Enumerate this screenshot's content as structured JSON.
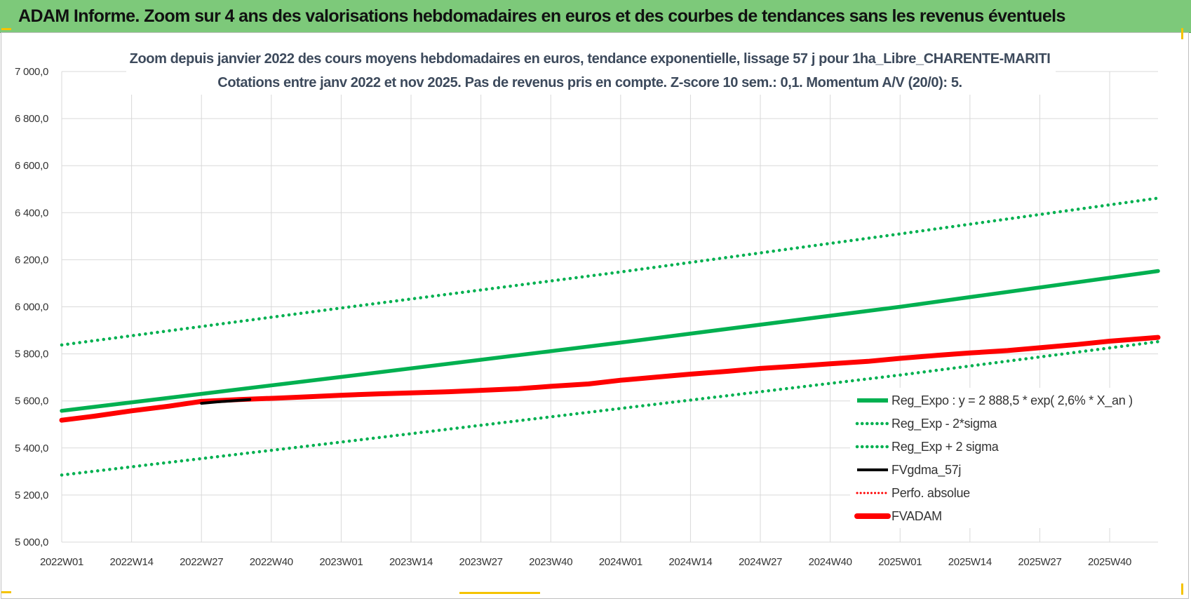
{
  "banner": {
    "title": "ADAM Informe. Zoom sur 4 ans des valorisations hebdomadaires en euros et des courbes de tendances sans les revenus éventuels"
  },
  "chart_data": {
    "type": "line",
    "title": "Zoom depuis janvier 2022 des cours moyens hebdomadaires en euros, tendance exponentielle, lissage 57 j pour 1ha_Libre_CHARENTE-MARITI",
    "subtitle": "Cotations entre janv 2022 et nov 2025. Pas de revenus pris en compte. Z-score 10 sem.: 0,1. Momentum A/V (20/0): 5.",
    "ylim": [
      5000,
      7000
    ],
    "y_ticks": [
      "7 000,0",
      "6 800,0",
      "6 600,0",
      "6 400,0",
      "6 200,0",
      "6 000,0",
      "5 800,0",
      "5 600,0",
      "5 400,0",
      "5 200,0",
      "5 000,0"
    ],
    "y_tick_values": [
      7000,
      6800,
      6600,
      6400,
      6200,
      6000,
      5800,
      5600,
      5400,
      5200,
      5000
    ],
    "categories": [
      "2022W01",
      "2022W14",
      "2022W27",
      "2022W40",
      "2023W01",
      "2023W14",
      "2023W27",
      "2023W40",
      "2024W01",
      "2024W14",
      "2024W27",
      "2024W40",
      "2025W01",
      "2025W14",
      "2025W27",
      "2025W40"
    ],
    "x_extent_weeks": 204,
    "grid": true,
    "legend_position": "bottom-right",
    "series": [
      {
        "name": "Reg_Expo : y = 2 888,5 * exp( 2,6% *  X_an )",
        "color": "#00b050",
        "style": "solid",
        "points": [
          [
            0,
            5558
          ],
          [
            52,
            5702
          ],
          [
            104,
            5848
          ],
          [
            156,
            6000
          ],
          [
            204,
            6152
          ]
        ]
      },
      {
        "name": "Reg_Exp - 2*sigma",
        "color": "#00b050",
        "style": "dotted",
        "points": [
          [
            0,
            5285
          ],
          [
            52,
            5425
          ],
          [
            104,
            5568
          ],
          [
            156,
            5710
          ],
          [
            204,
            5852
          ]
        ]
      },
      {
        "name": "Reg_Exp + 2 sigma",
        "color": "#00b050",
        "style": "dotted",
        "points": [
          [
            0,
            5838
          ],
          [
            52,
            5995
          ],
          [
            104,
            6148
          ],
          [
            156,
            6310
          ],
          [
            204,
            6462
          ]
        ]
      },
      {
        "name": "FVgdma_57j",
        "color": "#000000",
        "style": "solid",
        "points": [
          [
            26,
            5590
          ],
          [
            29,
            5596
          ],
          [
            32,
            5601
          ],
          [
            35,
            5606
          ]
        ]
      },
      {
        "name": "Perfo. absolue",
        "color": "#ff0000",
        "style": "dotted",
        "points": []
      },
      {
        "name": "FVADAM",
        "color": "#ff0000",
        "style": "solid",
        "points": [
          [
            0,
            5518
          ],
          [
            6,
            5535
          ],
          [
            13,
            5558
          ],
          [
            20,
            5578
          ],
          [
            26,
            5598
          ],
          [
            33,
            5606
          ],
          [
            40,
            5612
          ],
          [
            46,
            5618
          ],
          [
            52,
            5624
          ],
          [
            59,
            5630
          ],
          [
            65,
            5634
          ],
          [
            72,
            5639
          ],
          [
            78,
            5645
          ],
          [
            85,
            5652
          ],
          [
            91,
            5662
          ],
          [
            98,
            5672
          ],
          [
            104,
            5688
          ],
          [
            111,
            5702
          ],
          [
            117,
            5714
          ],
          [
            124,
            5726
          ],
          [
            130,
            5738
          ],
          [
            137,
            5748
          ],
          [
            143,
            5758
          ],
          [
            150,
            5768
          ],
          [
            156,
            5781
          ],
          [
            163,
            5794
          ],
          [
            169,
            5804
          ],
          [
            176,
            5814
          ],
          [
            182,
            5826
          ],
          [
            189,
            5840
          ],
          [
            195,
            5854
          ],
          [
            204,
            5870
          ]
        ]
      }
    ]
  }
}
